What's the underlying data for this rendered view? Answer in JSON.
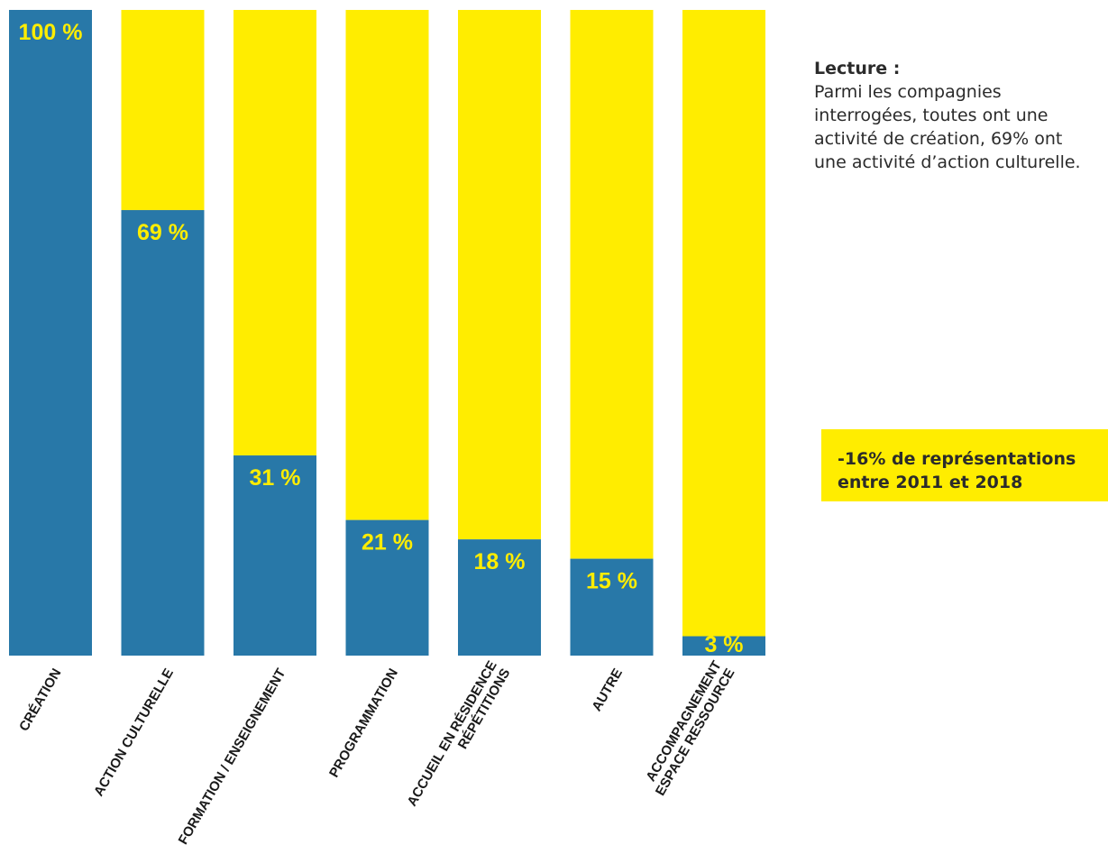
{
  "chart_data": {
    "type": "bar",
    "stacked_to_100": true,
    "categories": [
      [
        "CRÉATION"
      ],
      [
        "ACTION CULTURELLE"
      ],
      [
        "FORMATION / ENSEIGNEMENT"
      ],
      [
        "PROGRAMMATION"
      ],
      [
        "ACCUEIL EN RÉSIDENCE",
        "RÉPÉTITIONS"
      ],
      [
        "AUTRE"
      ],
      [
        "ACCOMPAGNEMENT",
        "ESPACE RESSOURCE"
      ]
    ],
    "values": [
      100,
      69,
      31,
      21,
      18,
      15,
      3
    ],
    "value_labels": [
      "100 %",
      "69 %",
      "31 %",
      "21 %",
      "18 %",
      "15 %",
      "3 %"
    ],
    "ylim": [
      0,
      100
    ],
    "colors": {
      "value": "#2878a8",
      "remainder": "#ffed00",
      "value_label": "#ffed00"
    },
    "grid": false,
    "legend": "none"
  },
  "reading": {
    "title": "Lecture :",
    "text": "Parmi les compagnies interrogées, toutes ont une activité de création, 69% ont une activité d’action culturelle."
  },
  "callout": {
    "text": "-16% de représentations\nentre 2011 et 2018"
  }
}
